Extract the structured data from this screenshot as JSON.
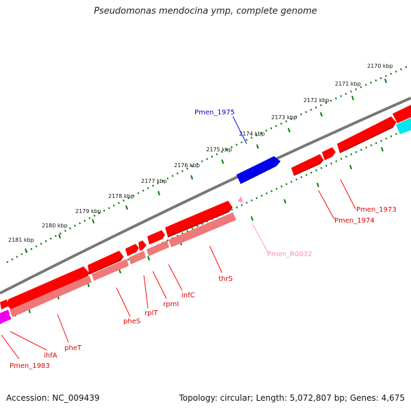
{
  "title": "Pseudomonas mendocina ymp, complete genome",
  "footer": {
    "accession": "Accession: NC_009439",
    "summary": "Topology: circular; Length: 5,072,807 bp; Genes: 4,675"
  },
  "colors": {
    "backbone": "#777777",
    "forward_gene": "#ff0000",
    "reverse_gene": "#f07878",
    "highlight_gene": "#0000ee",
    "rna_gene": "#ff99cc",
    "ticks": "#0a7a0a",
    "cyan_gene": "#00e5ee",
    "magenta_gene": "#ee00ee"
  },
  "ticks": [
    {
      "id": "t2170",
      "label": "2170 kbp"
    },
    {
      "id": "t2171",
      "label": "2171 kbp"
    },
    {
      "id": "t2172",
      "label": "2172 kbp"
    },
    {
      "id": "t2173",
      "label": "2173 kbp"
    },
    {
      "id": "t2174",
      "label": "2174 kbp"
    },
    {
      "id": "t2175",
      "label": "2175 kbp"
    },
    {
      "id": "t2176",
      "label": "2176 kbp"
    },
    {
      "id": "t2177",
      "label": "2177 kbp"
    },
    {
      "id": "t2178",
      "label": "2178 kbp"
    },
    {
      "id": "t2179",
      "label": "2179 kbp"
    },
    {
      "id": "t2180",
      "label": "2180 kbp"
    },
    {
      "id": "t2181",
      "label": "2181 kbp"
    }
  ],
  "labels": {
    "pmen_1975": "Pmen_1975",
    "pmen_1973": "Pmen_1973",
    "pmen_1974": "Pmen_1974",
    "pmen_r0032": "Pmen_R0032",
    "thrs": "thrS",
    "infc": "infC",
    "rpmi": "rpmI",
    "rplt": "rplT",
    "phes": "pheS",
    "phet": "pheT",
    "ihfa": "ihfA",
    "pmen_1983": "Pmen_1983"
  }
}
